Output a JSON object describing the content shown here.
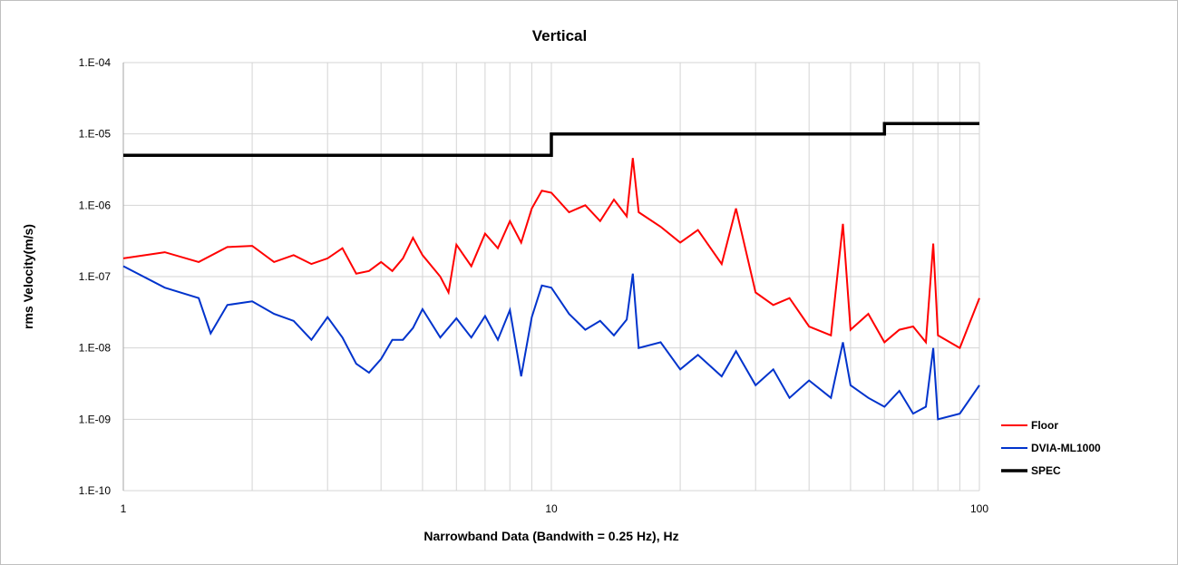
{
  "chart_data": {
    "type": "line",
    "title": "Vertical",
    "xlabel": "Narrowband Data (Bandwith = 0.25 Hz), Hz",
    "ylabel": "rms Velocity(m/s)",
    "x_scale": "log",
    "y_scale": "log",
    "xlim": [
      1,
      100
    ],
    "ylim": [
      1e-10,
      0.0001
    ],
    "x_ticks": [
      {
        "value": 1,
        "label": "1"
      },
      {
        "value": 10,
        "label": "10"
      },
      {
        "value": 100,
        "label": "100"
      }
    ],
    "y_ticks": [
      {
        "value": 1e-10,
        "label": "1.E-10"
      },
      {
        "value": 1e-09,
        "label": "1.E-09"
      },
      {
        "value": 1e-08,
        "label": "1.E-08"
      },
      {
        "value": 1e-07,
        "label": "1.E-07"
      },
      {
        "value": 1e-06,
        "label": "1.E-06"
      },
      {
        "value": 1e-05,
        "label": "1.E-05"
      },
      {
        "value": 0.0001,
        "label": "1.E-04"
      }
    ],
    "grid": true,
    "legend_position": "right",
    "series": [
      {
        "name": "Floor",
        "color": "#ff0000",
        "points": [
          [
            1.0,
            1.8e-07
          ],
          [
            1.25,
            2.2e-07
          ],
          [
            1.5,
            1.6e-07
          ],
          [
            1.75,
            2.6e-07
          ],
          [
            2.0,
            2.7e-07
          ],
          [
            2.25,
            1.6e-07
          ],
          [
            2.5,
            2e-07
          ],
          [
            2.75,
            1.5e-07
          ],
          [
            3.0,
            1.8e-07
          ],
          [
            3.25,
            2.5e-07
          ],
          [
            3.5,
            1.1e-07
          ],
          [
            3.75,
            1.2e-07
          ],
          [
            4.0,
            1.6e-07
          ],
          [
            4.25,
            1.2e-07
          ],
          [
            4.5,
            1.8e-07
          ],
          [
            4.75,
            3.5e-07
          ],
          [
            5.0,
            2e-07
          ],
          [
            5.5,
            1e-07
          ],
          [
            5.75,
            6e-08
          ],
          [
            6.0,
            2.8e-07
          ],
          [
            6.5,
            1.4e-07
          ],
          [
            7.0,
            4e-07
          ],
          [
            7.5,
            2.5e-07
          ],
          [
            8.0,
            6e-07
          ],
          [
            8.5,
            3e-07
          ],
          [
            9.0,
            9e-07
          ],
          [
            9.5,
            1.6e-06
          ],
          [
            10.0,
            1.5e-06
          ],
          [
            11.0,
            8e-07
          ],
          [
            12.0,
            1e-06
          ],
          [
            13.0,
            6e-07
          ],
          [
            14.0,
            1.2e-06
          ],
          [
            15.0,
            7e-07
          ],
          [
            15.5,
            4.6e-06
          ],
          [
            16.0,
            8e-07
          ],
          [
            18.0,
            5e-07
          ],
          [
            20.0,
            3e-07
          ],
          [
            22.0,
            4.5e-07
          ],
          [
            25.0,
            1.5e-07
          ],
          [
            27.0,
            9e-07
          ],
          [
            30.0,
            6e-08
          ],
          [
            33.0,
            4e-08
          ],
          [
            36.0,
            5e-08
          ],
          [
            40.0,
            2e-08
          ],
          [
            45.0,
            1.5e-08
          ],
          [
            48.0,
            5.5e-07
          ],
          [
            50.0,
            1.8e-08
          ],
          [
            55.0,
            3e-08
          ],
          [
            60.0,
            1.2e-08
          ],
          [
            65.0,
            1.8e-08
          ],
          [
            70.0,
            2e-08
          ],
          [
            75.0,
            1.2e-08
          ],
          [
            78.0,
            2.9e-07
          ],
          [
            80.0,
            1.5e-08
          ],
          [
            90.0,
            1e-08
          ],
          [
            100.0,
            5e-08
          ]
        ]
      },
      {
        "name": "DVIA-ML1000",
        "color": "#0033cc",
        "points": [
          [
            1.0,
            1.4e-07
          ],
          [
            1.25,
            7e-08
          ],
          [
            1.5,
            5e-08
          ],
          [
            1.6,
            1.6e-08
          ],
          [
            1.75,
            4e-08
          ],
          [
            2.0,
            4.5e-08
          ],
          [
            2.25,
            3e-08
          ],
          [
            2.5,
            2.4e-08
          ],
          [
            2.75,
            1.3e-08
          ],
          [
            3.0,
            2.7e-08
          ],
          [
            3.25,
            1.4e-08
          ],
          [
            3.5,
            6e-09
          ],
          [
            3.75,
            4.5e-09
          ],
          [
            4.0,
            7e-09
          ],
          [
            4.25,
            1.3e-08
          ],
          [
            4.5,
            1.3e-08
          ],
          [
            4.75,
            1.9e-08
          ],
          [
            5.0,
            3.5e-08
          ],
          [
            5.5,
            1.4e-08
          ],
          [
            6.0,
            2.6e-08
          ],
          [
            6.5,
            1.4e-08
          ],
          [
            7.0,
            2.8e-08
          ],
          [
            7.5,
            1.3e-08
          ],
          [
            8.0,
            3.4e-08
          ],
          [
            8.5,
            4e-09
          ],
          [
            9.0,
            2.7e-08
          ],
          [
            9.5,
            7.5e-08
          ],
          [
            10.0,
            7e-08
          ],
          [
            11.0,
            3e-08
          ],
          [
            12.0,
            1.8e-08
          ],
          [
            13.0,
            2.4e-08
          ],
          [
            14.0,
            1.5e-08
          ],
          [
            15.0,
            2.5e-08
          ],
          [
            15.5,
            1.1e-07
          ],
          [
            16.0,
            1e-08
          ],
          [
            18.0,
            1.2e-08
          ],
          [
            20.0,
            5e-09
          ],
          [
            22.0,
            8e-09
          ],
          [
            25.0,
            4e-09
          ],
          [
            27.0,
            9e-09
          ],
          [
            30.0,
            3e-09
          ],
          [
            33.0,
            5e-09
          ],
          [
            36.0,
            2e-09
          ],
          [
            40.0,
            3.5e-09
          ],
          [
            45.0,
            2e-09
          ],
          [
            48.0,
            1.2e-08
          ],
          [
            50.0,
            3e-09
          ],
          [
            55.0,
            2e-09
          ],
          [
            60.0,
            1.5e-09
          ],
          [
            65.0,
            2.5e-09
          ],
          [
            70.0,
            1.2e-09
          ],
          [
            75.0,
            1.5e-09
          ],
          [
            78.0,
            1e-08
          ],
          [
            80.0,
            1e-09
          ],
          [
            90.0,
            1.2e-09
          ],
          [
            100.0,
            3e-09
          ]
        ]
      },
      {
        "name": "SPEC",
        "color": "#000000",
        "points": [
          [
            1.0,
            5e-06
          ],
          [
            10.0,
            5e-06
          ],
          [
            10.0,
            1e-05
          ],
          [
            60.0,
            1e-05
          ],
          [
            60.0,
            1.4e-05
          ],
          [
            100.0,
            1.4e-05
          ]
        ]
      }
    ]
  }
}
